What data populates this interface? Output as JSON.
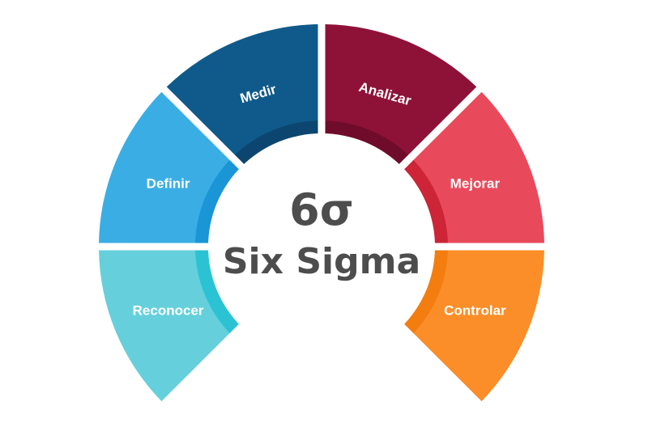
{
  "center": {
    "symbol": "6σ",
    "title": "Six Sigma",
    "text_color": "#4d4d4d"
  },
  "segments": [
    {
      "label": "Reconocer",
      "outer": "#65d0dc",
      "inner": "#2bc3d3"
    },
    {
      "label": "Definir",
      "outer": "#3aaee4",
      "inner": "#1a95d6"
    },
    {
      "label": "Medir",
      "outer": "#0f5a8a",
      "inner": "#0c4670"
    },
    {
      "label": "Analizar",
      "outer": "#8e1238",
      "inner": "#700c2b"
    },
    {
      "label": "Mejorar",
      "outer": "#e84a5b",
      "inner": "#cd2437"
    },
    {
      "label": "Controlar",
      "outer": "#fb8e28",
      "inner": "#f47d10"
    }
  ]
}
